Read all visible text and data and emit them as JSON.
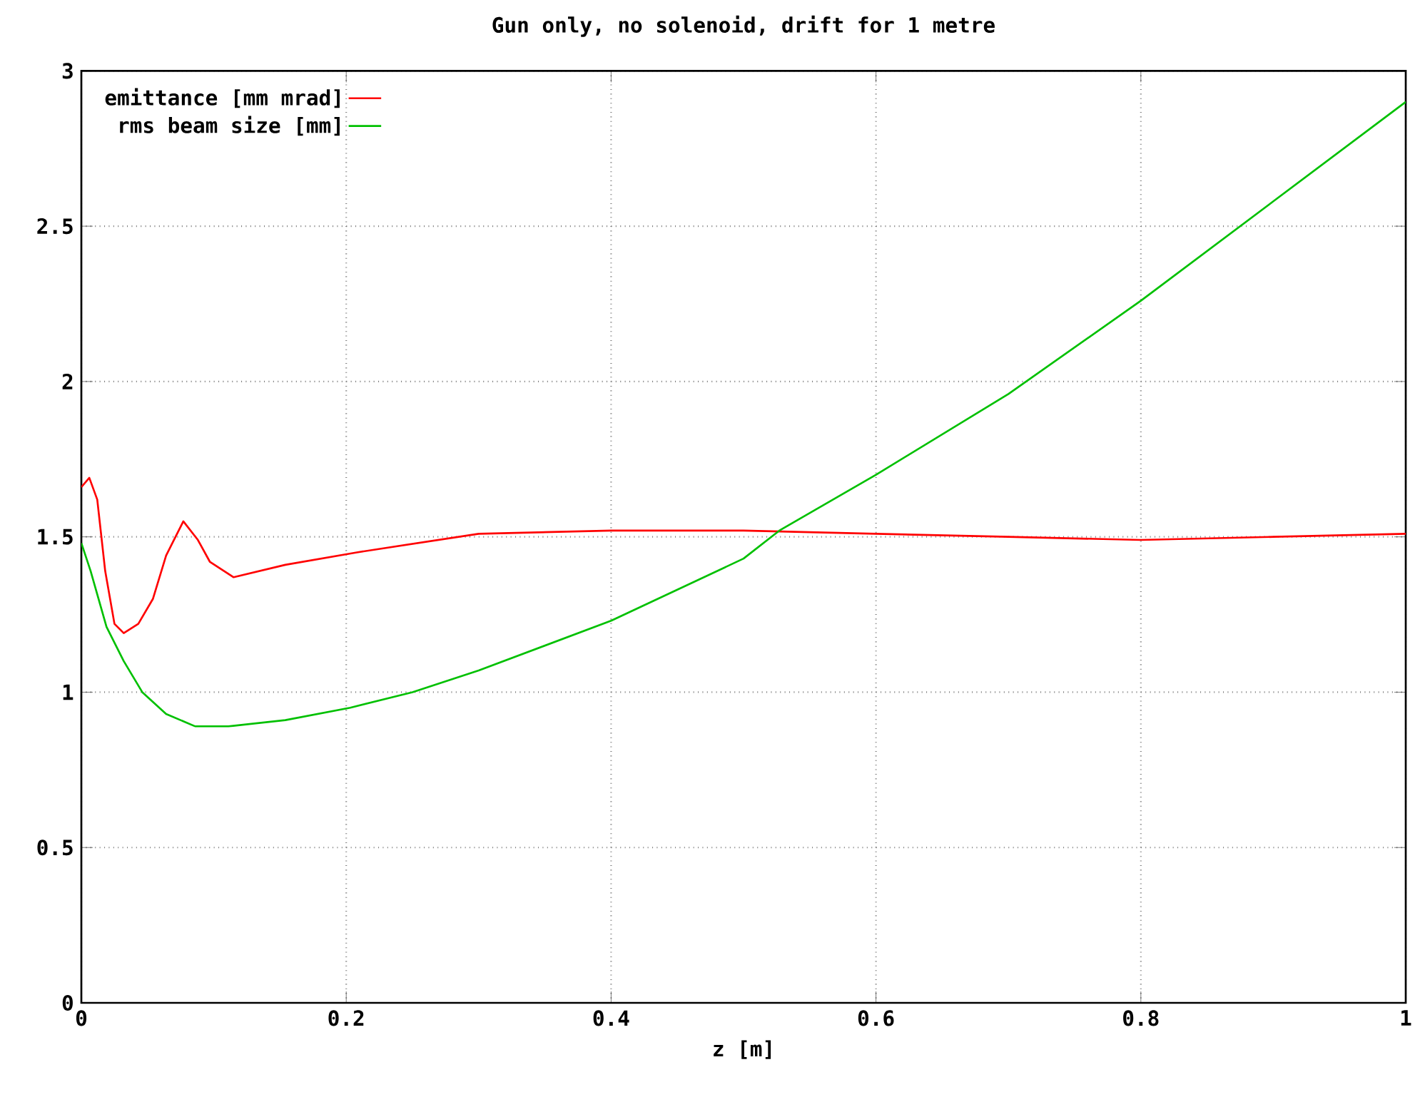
{
  "chart_data": {
    "type": "line",
    "title": "Gun only, no solenoid, drift for 1 metre",
    "xlabel": "z [m]",
    "xlim": [
      0,
      1
    ],
    "ylim": [
      0,
      3
    ],
    "xticks": [
      0,
      0.2,
      0.4,
      0.6,
      0.8,
      1
    ],
    "yticks": [
      0,
      0.5,
      1,
      1.5,
      2,
      2.5,
      3
    ],
    "grid": true,
    "legend": "top left",
    "marker": "none",
    "line_style": "solid",
    "series": [
      {
        "name": "emittance [mm mrad]",
        "color": "#ff0000",
        "x": [
          0,
          0.006,
          0.012,
          0.018,
          0.025,
          0.032,
          0.043,
          0.054,
          0.064,
          0.077,
          0.088,
          0.097,
          0.115,
          0.154,
          0.208,
          0.3,
          0.4,
          0.5,
          0.6,
          0.7,
          0.8,
          0.9,
          1.0
        ],
        "values": [
          1.66,
          1.69,
          1.62,
          1.39,
          1.22,
          1.19,
          1.22,
          1.3,
          1.44,
          1.55,
          1.49,
          1.42,
          1.37,
          1.41,
          1.45,
          1.51,
          1.52,
          1.52,
          1.51,
          1.5,
          1.49,
          1.5,
          1.51
        ]
      },
      {
        "name": "rms beam size [mm]",
        "color": "#00c000",
        "x": [
          0,
          0.007,
          0.019,
          0.032,
          0.046,
          0.064,
          0.086,
          0.111,
          0.154,
          0.203,
          0.25,
          0.3,
          0.4,
          0.5,
          0.527,
          0.6,
          0.7,
          0.8,
          0.9,
          1.0
        ],
        "values": [
          1.48,
          1.39,
          1.21,
          1.1,
          1.0,
          0.93,
          0.89,
          0.89,
          0.91,
          0.95,
          1.0,
          1.07,
          1.23,
          1.43,
          1.52,
          1.7,
          1.96,
          2.26,
          2.58,
          2.9
        ]
      }
    ]
  }
}
